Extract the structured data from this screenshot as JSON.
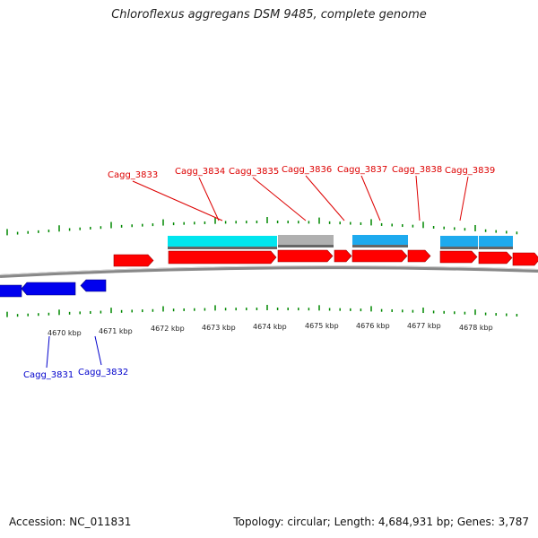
{
  "title": "Chloroflexus aggregans DSM 9485, complete genome",
  "accession": "Accession: NC_011831",
  "summary": "Topology: circular; Length: 4,684,931 bp; Genes: 3,787",
  "colors": {
    "forward_gene": "#ff0000",
    "reverse_gene": "#0000ee",
    "forward_label": "#dd0000",
    "reverse_label": "#0000cc",
    "cds_cyan": "#00e5ee",
    "cds_gray": "#b0b0b0",
    "cds_blue": "#1eaaee",
    "backbone": "#888888",
    "tick": "#008800"
  },
  "scale_labels": [
    "4670 kbp",
    "4671 kbp",
    "4672 kbp",
    "4673 kbp",
    "4674 kbp",
    "4675 kbp",
    "4676 kbp",
    "4677 kbp",
    "4678 kbp"
  ],
  "forward_genes": [
    {
      "label": "Cagg_3833"
    },
    {
      "label": "Cagg_3834"
    },
    {
      "label": "Cagg_3835"
    },
    {
      "label": "Cagg_3836"
    },
    {
      "label": "Cagg_3837"
    },
    {
      "label": "Cagg_3838"
    },
    {
      "label": "Cagg_3839"
    }
  ],
  "reverse_genes": [
    {
      "label": "Cagg_3831"
    },
    {
      "label": "Cagg_3832"
    }
  ]
}
